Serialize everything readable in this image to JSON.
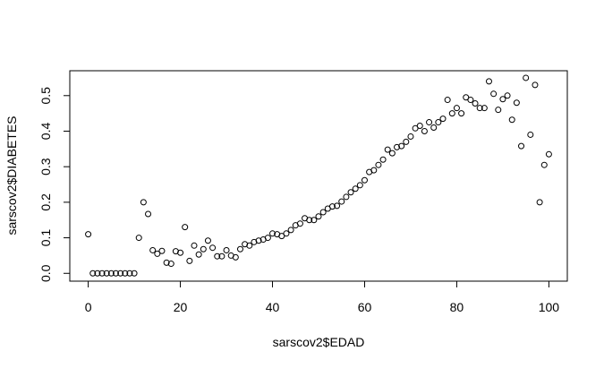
{
  "chart_data": {
    "type": "scatter",
    "title": "",
    "xlabel": "sarscov2$EDAD",
    "ylabel": "sarscov2$DIABETES",
    "xlim": [
      -4,
      104
    ],
    "ylim": [
      -0.022,
      0.57
    ],
    "xticks": [
      0,
      20,
      40,
      60,
      80,
      100
    ],
    "xtick_labels": [
      "0",
      "20",
      "40",
      "60",
      "80",
      "100"
    ],
    "yticks": [
      0.0,
      0.1,
      0.2,
      0.3,
      0.4,
      0.5
    ],
    "ytick_labels": [
      "0.0",
      "0.1",
      "0.2",
      "0.3",
      "0.4",
      "0.5"
    ],
    "grid": false,
    "marker": "open-circle",
    "x": [
      0,
      1,
      2,
      3,
      4,
      5,
      6,
      7,
      8,
      9,
      10,
      11,
      12,
      13,
      14,
      15,
      16,
      17,
      18,
      19,
      20,
      21,
      22,
      23,
      24,
      25,
      26,
      27,
      28,
      29,
      30,
      31,
      32,
      33,
      34,
      35,
      36,
      37,
      38,
      39,
      40,
      41,
      42,
      43,
      44,
      45,
      46,
      47,
      48,
      49,
      50,
      51,
      52,
      53,
      54,
      55,
      56,
      57,
      58,
      59,
      60,
      61,
      62,
      63,
      64,
      65,
      66,
      67,
      68,
      69,
      70,
      71,
      72,
      73,
      74,
      75,
      76,
      77,
      78,
      79,
      80,
      81,
      82,
      83,
      84,
      85,
      86,
      87,
      88,
      89,
      90,
      91,
      92,
      93,
      94,
      95,
      96,
      97,
      98,
      99,
      100
    ],
    "y": [
      0.11,
      0.0,
      0.0,
      0.0,
      0.0,
      0.0,
      0.0,
      0.0,
      0.0,
      0.0,
      0.0,
      0.1,
      0.2,
      0.167,
      0.065,
      0.055,
      0.063,
      0.03,
      0.027,
      0.062,
      0.058,
      0.13,
      0.035,
      0.078,
      0.053,
      0.068,
      0.092,
      0.072,
      0.048,
      0.048,
      0.065,
      0.05,
      0.045,
      0.068,
      0.082,
      0.078,
      0.088,
      0.092,
      0.095,
      0.1,
      0.112,
      0.11,
      0.105,
      0.112,
      0.122,
      0.135,
      0.14,
      0.155,
      0.15,
      0.15,
      0.16,
      0.172,
      0.182,
      0.188,
      0.19,
      0.202,
      0.215,
      0.228,
      0.238,
      0.248,
      0.262,
      0.285,
      0.29,
      0.305,
      0.32,
      0.348,
      0.338,
      0.355,
      0.358,
      0.37,
      0.385,
      0.408,
      0.415,
      0.4,
      0.425,
      0.41,
      0.425,
      0.435,
      0.488,
      0.45,
      0.465,
      0.45,
      0.495,
      0.488,
      0.478,
      0.465,
      0.465,
      0.54,
      0.505,
      0.46,
      0.49,
      0.5,
      0.432,
      0.48,
      0.358,
      0.55,
      0.39,
      0.53,
      0.2,
      0.305,
      0.335
    ]
  }
}
